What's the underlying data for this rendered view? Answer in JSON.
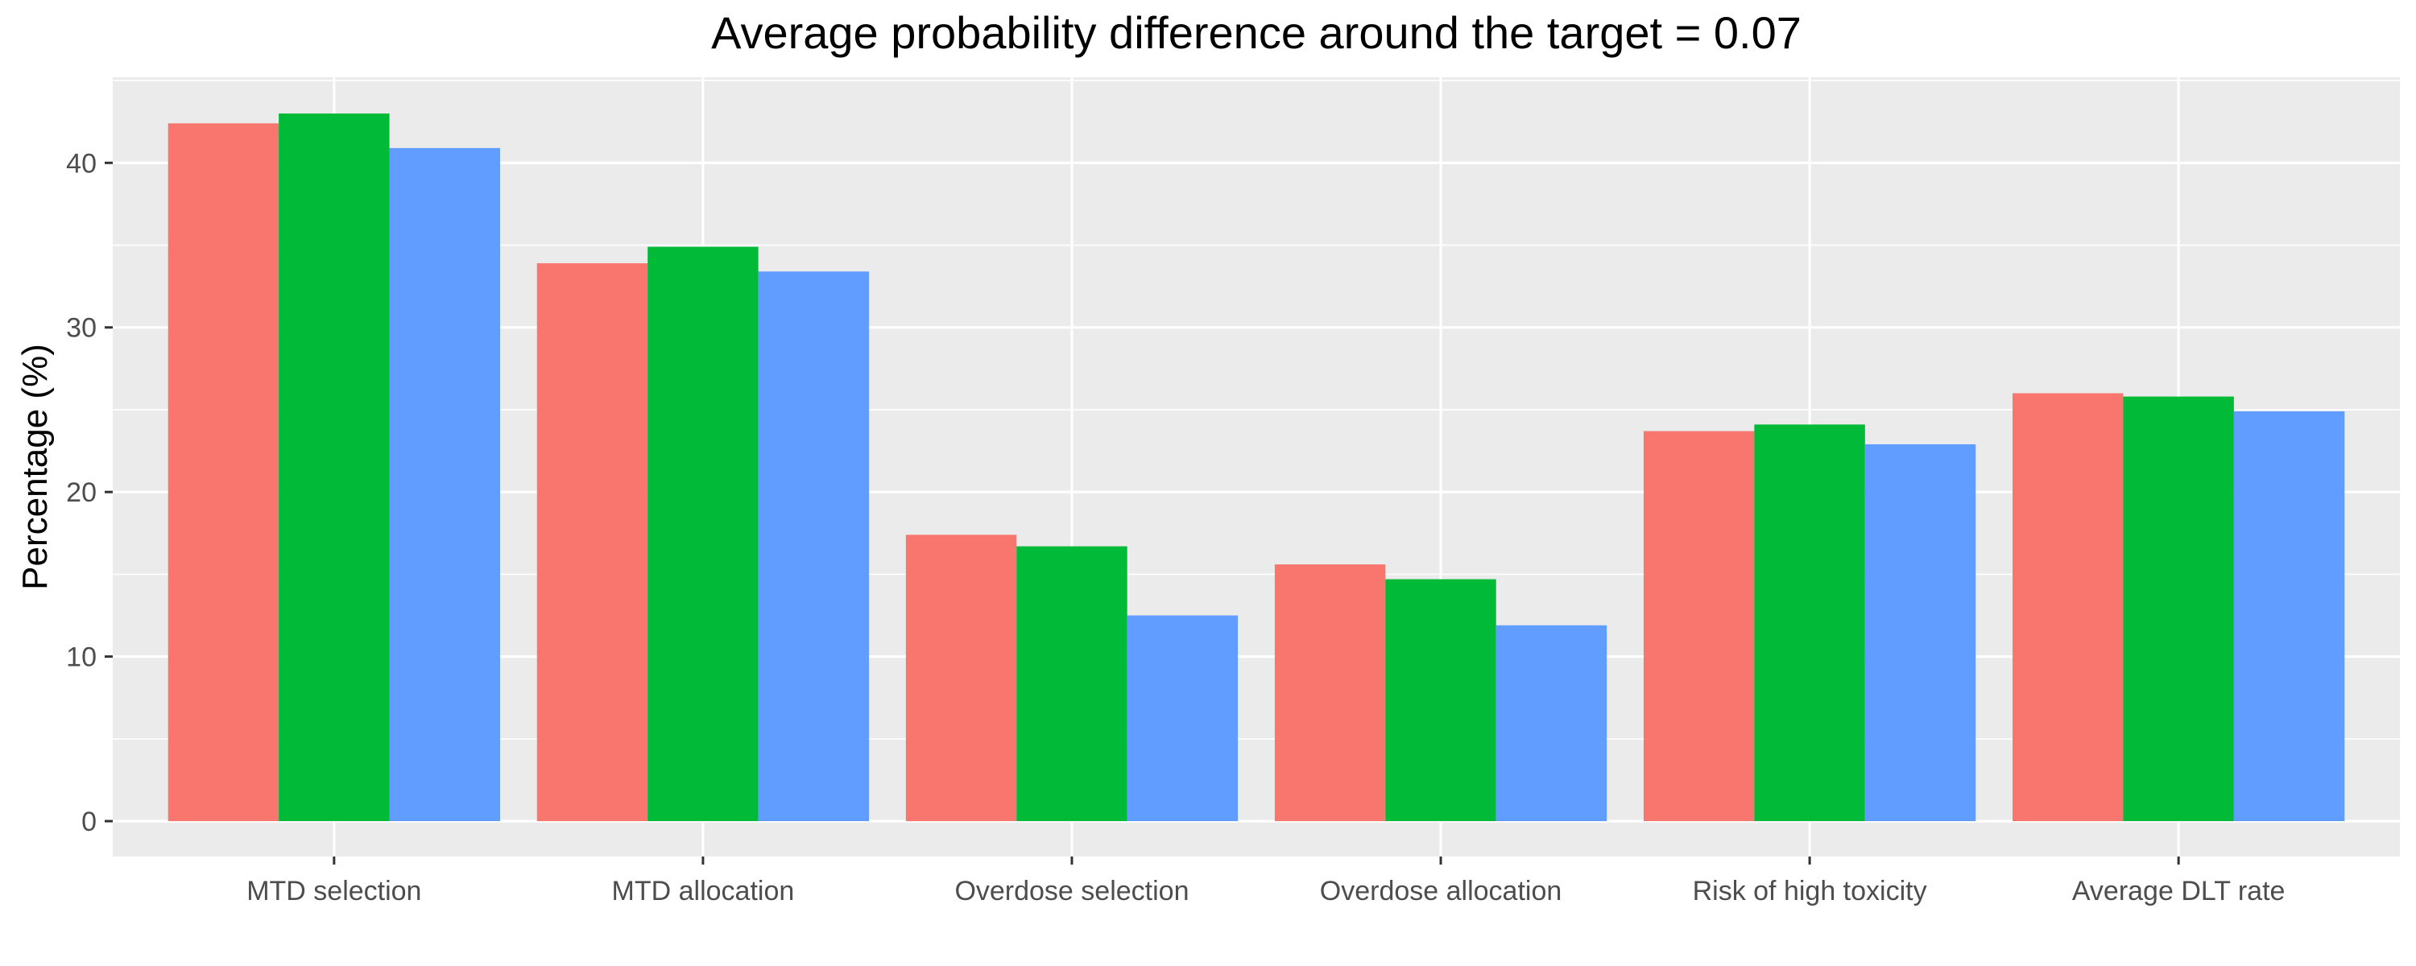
{
  "chart_data": {
    "type": "bar",
    "title": "Average probability difference around the target = 0.07",
    "xlabel": "",
    "ylabel": "Percentage (%)",
    "categories": [
      "MTD selection",
      "MTD allocation",
      "Overdose selection",
      "Overdose allocation",
      "Risk of high toxicity",
      "Average DLT rate"
    ],
    "series": [
      {
        "color": "#F8766D",
        "values": [
          42.4,
          33.9,
          17.4,
          15.6,
          23.7,
          26.0
        ]
      },
      {
        "color": "#00BA38",
        "values": [
          43.0,
          34.9,
          16.7,
          14.7,
          24.1,
          25.8
        ]
      },
      {
        "color": "#619CFF",
        "values": [
          40.9,
          33.4,
          12.5,
          11.9,
          22.9,
          24.9
        ]
      }
    ],
    "yticks": [
      0,
      10,
      20,
      30,
      40
    ],
    "ylim": [
      -2.15,
      45.2
    ],
    "grid": true,
    "legend": "none",
    "colors": {
      "panel_background": "#EBEBEB",
      "grid_major": "#FFFFFF",
      "tick_text": "#4D4D4D",
      "tick_mark": "#333333"
    }
  }
}
